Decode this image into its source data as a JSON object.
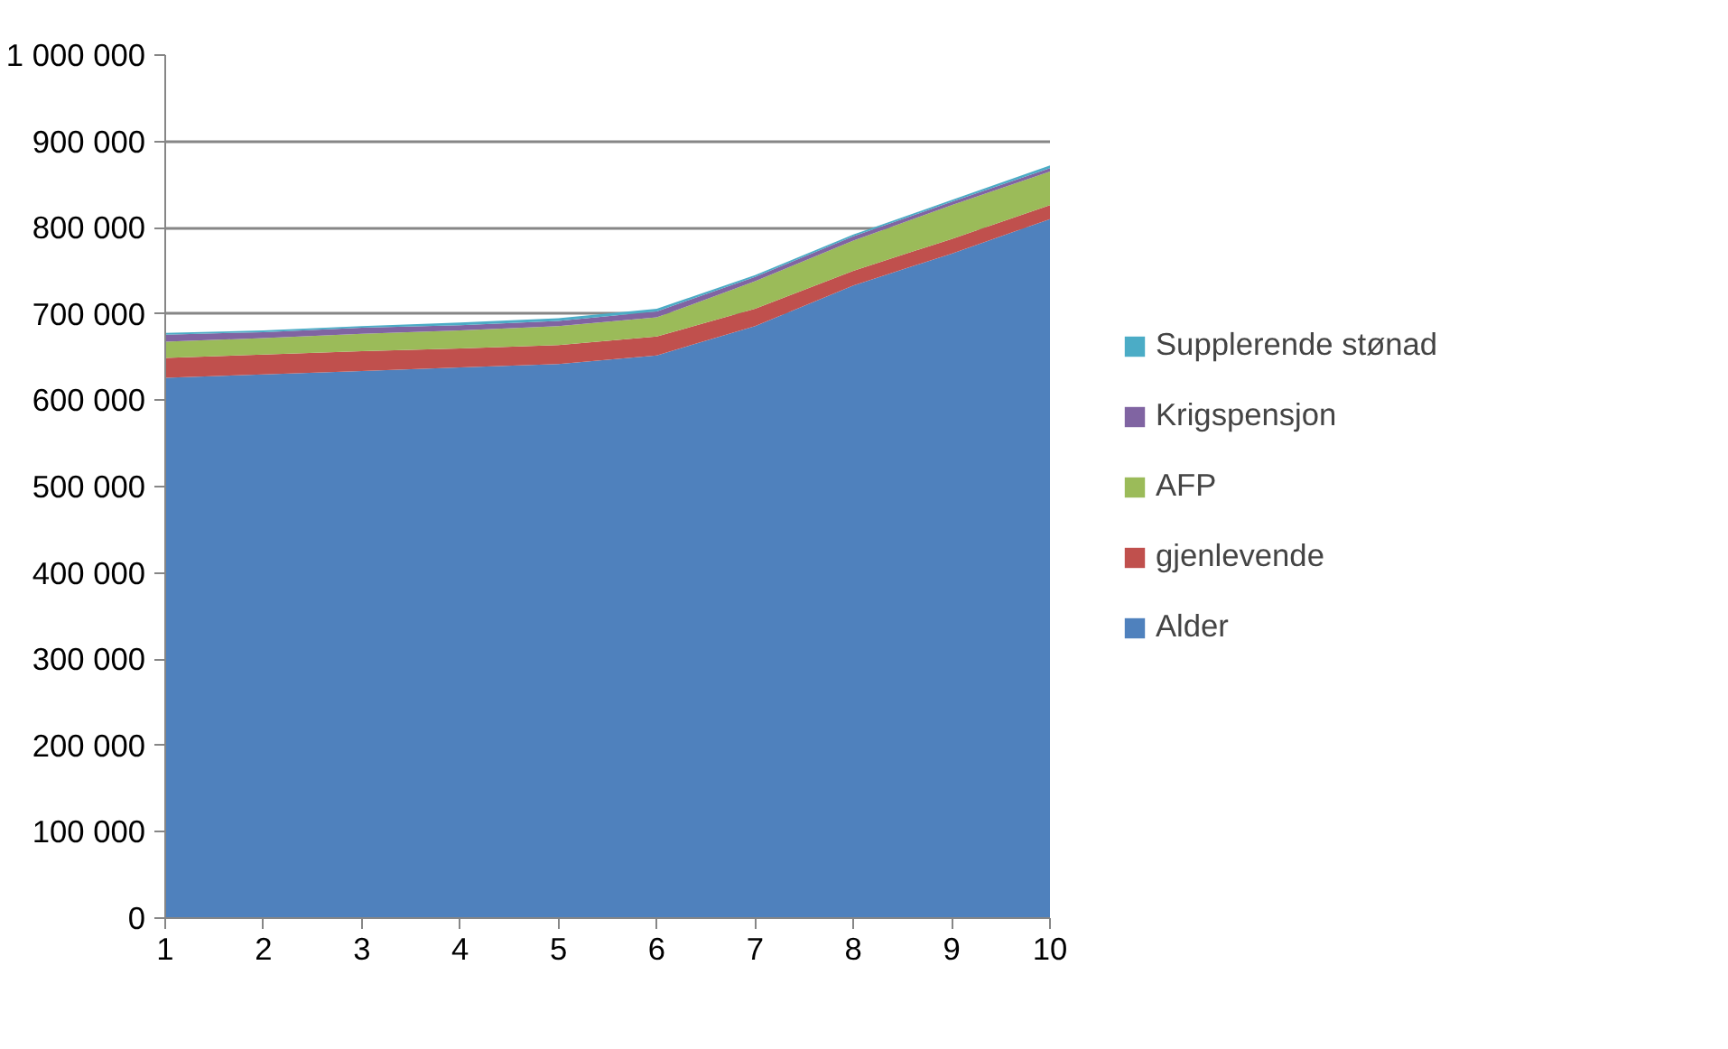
{
  "chart_data": {
    "type": "area",
    "stacked": true,
    "x": [
      1,
      2,
      3,
      4,
      5,
      6,
      7,
      8,
      9,
      10
    ],
    "series": [
      {
        "name": "Alder",
        "color": "#4f81bd",
        "values": [
          626000,
          630000,
          634000,
          638000,
          642000,
          652000,
          686000,
          733000,
          770000,
          810000
        ]
      },
      {
        "name": "gjenlevende",
        "color": "#c0504d",
        "values": [
          23000,
          23000,
          23000,
          22000,
          22000,
          22000,
          20000,
          17000,
          17000,
          16000
        ]
      },
      {
        "name": "AFP",
        "color": "#9bbb59",
        "values": [
          19000,
          19000,
          20000,
          21000,
          22000,
          22000,
          32000,
          35000,
          39000,
          39000
        ]
      },
      {
        "name": "Krigspensjon",
        "color": "#8064a2",
        "values": [
          8000,
          7000,
          7000,
          6000,
          6000,
          7000,
          5000,
          5000,
          4000,
          4000
        ]
      },
      {
        "name": "Supplerende stønad",
        "color": "#4bacc6",
        "values": [
          2000,
          2000,
          2000,
          3000,
          3000,
          3000,
          2000,
          2000,
          2000,
          3000
        ]
      }
    ],
    "xlim": [
      1,
      10
    ],
    "xticks": [
      1,
      2,
      3,
      4,
      5,
      6,
      7,
      8,
      9,
      10
    ],
    "ylim": [
      0,
      1000000
    ],
    "yticks": [
      0,
      {
        "value": 100000,
        "label": "100 000"
      },
      {
        "value": 200000,
        "label": "200 000"
      },
      {
        "value": 300000,
        "label": "300 000"
      },
      {
        "value": 400000,
        "label": "400 000"
      },
      {
        "value": 500000,
        "label": "500 000"
      },
      {
        "value": 600000,
        "label": "600 000"
      },
      {
        "value": 700000,
        "label": "700 000"
      },
      {
        "value": 800000,
        "label": "800 000"
      },
      {
        "value": 900000,
        "label": "900 000"
      },
      {
        "value": 1000000,
        "label": "1 000 000"
      }
    ],
    "grid": "y",
    "legend": "right"
  }
}
